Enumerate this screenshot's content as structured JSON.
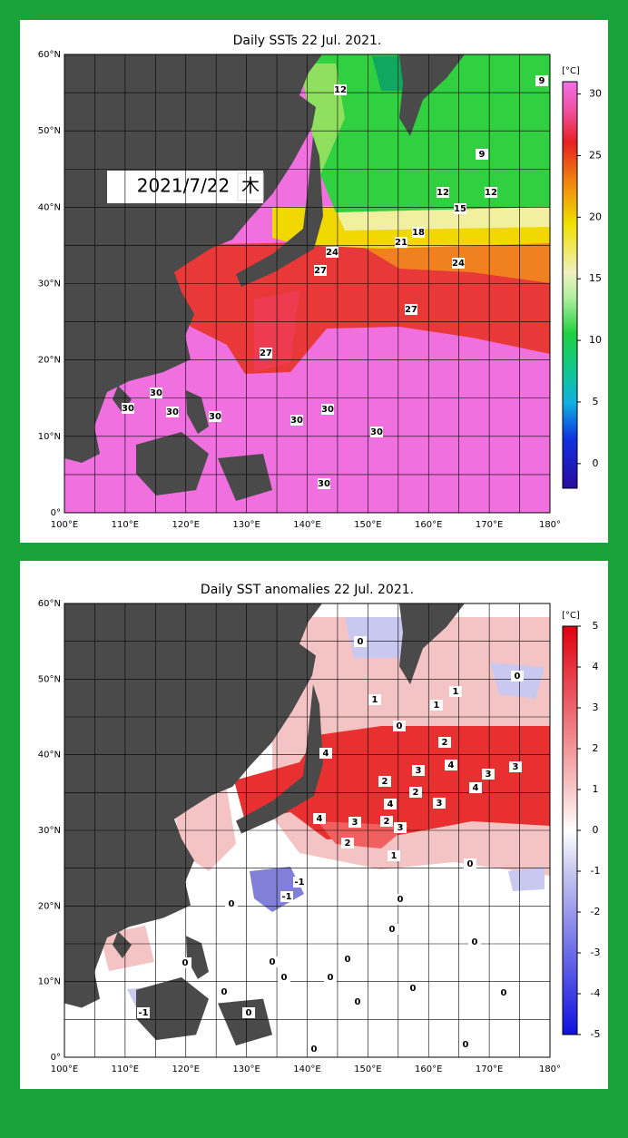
{
  "panels": [
    {
      "title": "Daily SSTs 22 Jul. 2021.",
      "lat_labels": [
        "60°N",
        "50°N",
        "40°N",
        "30°N",
        "20°N",
        "10°N",
        "0°"
      ],
      "lon_labels": [
        "100°E",
        "110°E",
        "120°E",
        "130°E",
        "140°E",
        "150°E",
        "160°E",
        "170°E",
        "180°"
      ],
      "colorbar": {
        "unit": "[°C]",
        "range": [
          -2,
          31
        ],
        "ticks": [
          30,
          25,
          20,
          15,
          10,
          5,
          0
        ]
      },
      "contour_labels": [
        12,
        9,
        9,
        12,
        12,
        15,
        18,
        21,
        24,
        27,
        24,
        27,
        27,
        30,
        30,
        30,
        30,
        30,
        30,
        30,
        30
      ],
      "date_box": {
        "date": "2021/7/22",
        "weekday": "木"
      }
    },
    {
      "title": "Daily SST anomalies 22 Jul. 2021.",
      "lat_labels": [
        "60°N",
        "50°N",
        "40°N",
        "30°N",
        "20°N",
        "10°N",
        "0°"
      ],
      "lon_labels": [
        "100°E",
        "110°E",
        "120°E",
        "130°E",
        "140°E",
        "150°E",
        "160°E",
        "170°E",
        "180°"
      ],
      "colorbar": {
        "unit": "[°C]",
        "range": [
          -5,
          5
        ],
        "ticks": [
          5,
          4,
          3,
          2,
          1,
          0,
          -1,
          -2,
          -3,
          -4,
          -5
        ]
      },
      "contour_labels": [
        0,
        0,
        1,
        1,
        1,
        0,
        2,
        4,
        3,
        4,
        3,
        3,
        2,
        2,
        4,
        4,
        3,
        4,
        3,
        2,
        3,
        2,
        1,
        0,
        -1,
        -1,
        0,
        0,
        0,
        0,
        0,
        0,
        0,
        0,
        0,
        0,
        0,
        0,
        0,
        -1,
        0,
        0,
        0
      ]
    }
  ]
}
